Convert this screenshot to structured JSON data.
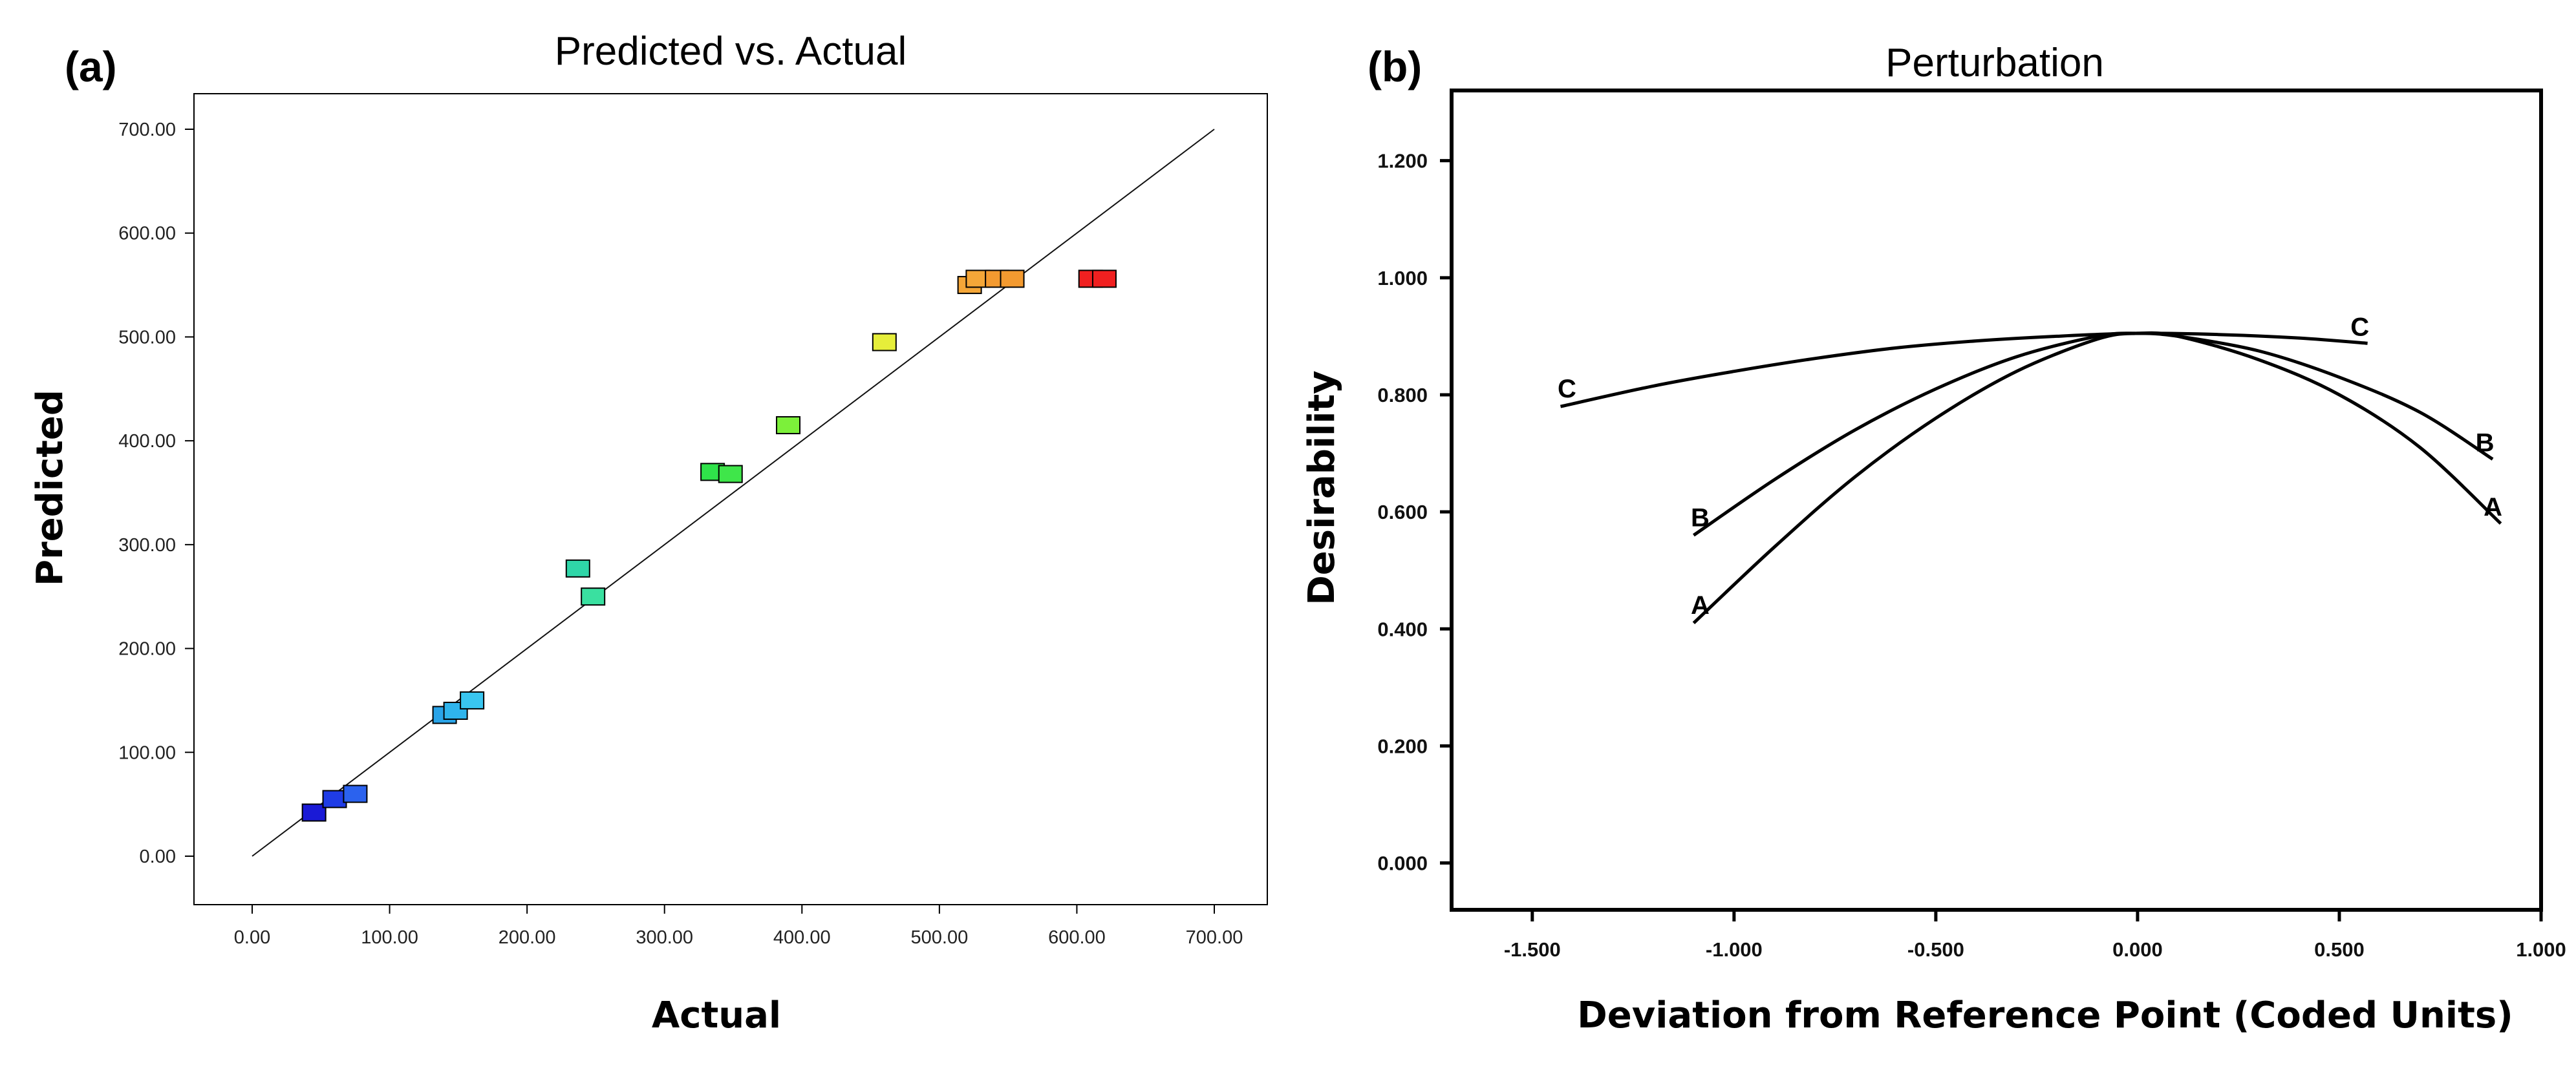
{
  "chart_data": [
    {
      "panel_label": "(a)",
      "type": "scatter",
      "title": "Predicted vs. Actual",
      "xlabel": "Actual",
      "ylabel": "Predicted",
      "xlim": [
        0,
        700
      ],
      "ylim": [
        0,
        700
      ],
      "xticks": [
        "0.00",
        "100.00",
        "200.00",
        "300.00",
        "400.00",
        "500.00",
        "600.00",
        "700.00"
      ],
      "yticks": [
        "0.00",
        "100.00",
        "200.00",
        "300.00",
        "400.00",
        "500.00",
        "600.00",
        "700.00"
      ],
      "xtick_values": [
        0,
        100,
        200,
        300,
        400,
        500,
        600,
        700
      ],
      "ytick_values": [
        0,
        100,
        200,
        300,
        400,
        500,
        600,
        700
      ],
      "grid": false,
      "reference_line": {
        "from": [
          0,
          0
        ],
        "to": [
          700,
          700
        ]
      },
      "points": [
        {
          "x": 45,
          "y": 42,
          "color": "#1a1ad6"
        },
        {
          "x": 60,
          "y": 55,
          "color": "#1f3ce6"
        },
        {
          "x": 75,
          "y": 60,
          "color": "#2b62ee"
        },
        {
          "x": 140,
          "y": 136,
          "color": "#2aa4e8"
        },
        {
          "x": 148,
          "y": 140,
          "color": "#2fb4ec"
        },
        {
          "x": 160,
          "y": 150,
          "color": "#39c6f0"
        },
        {
          "x": 237,
          "y": 277,
          "color": "#2fd6a8"
        },
        {
          "x": 248,
          "y": 250,
          "color": "#3ae0a0"
        },
        {
          "x": 335,
          "y": 370,
          "color": "#2fe24a"
        },
        {
          "x": 348,
          "y": 368,
          "color": "#3fe64a"
        },
        {
          "x": 390,
          "y": 415,
          "color": "#7cf03a"
        },
        {
          "x": 460,
          "y": 495,
          "color": "#e6ee3a"
        },
        {
          "x": 522,
          "y": 550,
          "color": "#f4a638"
        },
        {
          "x": 528,
          "y": 556,
          "color": "#f4a638"
        },
        {
          "x": 542,
          "y": 556,
          "color": "#f39a30"
        },
        {
          "x": 553,
          "y": 556,
          "color": "#f39a30"
        },
        {
          "x": 610,
          "y": 556,
          "color": "#f02020"
        },
        {
          "x": 620,
          "y": 556,
          "color": "#f02020"
        }
      ]
    },
    {
      "panel_label": "(b)",
      "type": "line",
      "title": "Perturbation",
      "xlabel": "Deviation from Reference Point (Coded Units)",
      "ylabel": "Desirability",
      "xlim": [
        -1.7,
        1.0
      ],
      "ylim": [
        -0.08,
        1.32
      ],
      "xticks": [
        "-1.500",
        "-1.000",
        "-0.500",
        "0.000",
        "0.500",
        "1.000"
      ],
      "xtick_values": [
        -1.5,
        -1.0,
        -0.5,
        0.0,
        0.5,
        1.0
      ],
      "yticks": [
        "0.000",
        "0.200",
        "0.400",
        "0.600",
        "0.800",
        "1.000",
        "1.200"
      ],
      "ytick_values": [
        0.0,
        0.2,
        0.4,
        0.6,
        0.8,
        1.0,
        1.2
      ],
      "grid": false,
      "series": [
        {
          "name": "A",
          "x": [
            -1.1,
            -0.9,
            -0.7,
            -0.5,
            -0.3,
            -0.1,
            0.0,
            0.1,
            0.3,
            0.5,
            0.7,
            0.9
          ],
          "y": [
            0.41,
            0.54,
            0.66,
            0.76,
            0.84,
            0.895,
            0.905,
            0.9,
            0.86,
            0.8,
            0.71,
            0.58
          ]
        },
        {
          "name": "B",
          "x": [
            -1.1,
            -0.9,
            -0.7,
            -0.5,
            -0.3,
            -0.1,
            0.0,
            0.1,
            0.3,
            0.5,
            0.7,
            0.88
          ],
          "y": [
            0.56,
            0.655,
            0.74,
            0.81,
            0.865,
            0.9,
            0.905,
            0.9,
            0.875,
            0.83,
            0.77,
            0.69
          ]
        },
        {
          "name": "C",
          "x": [
            -1.43,
            -1.2,
            -1.0,
            -0.8,
            -0.6,
            -0.4,
            -0.2,
            0.0,
            0.2,
            0.4,
            0.57
          ],
          "y": [
            0.78,
            0.815,
            0.84,
            0.862,
            0.88,
            0.892,
            0.9,
            0.905,
            0.903,
            0.897,
            0.888
          ]
        }
      ]
    }
  ]
}
